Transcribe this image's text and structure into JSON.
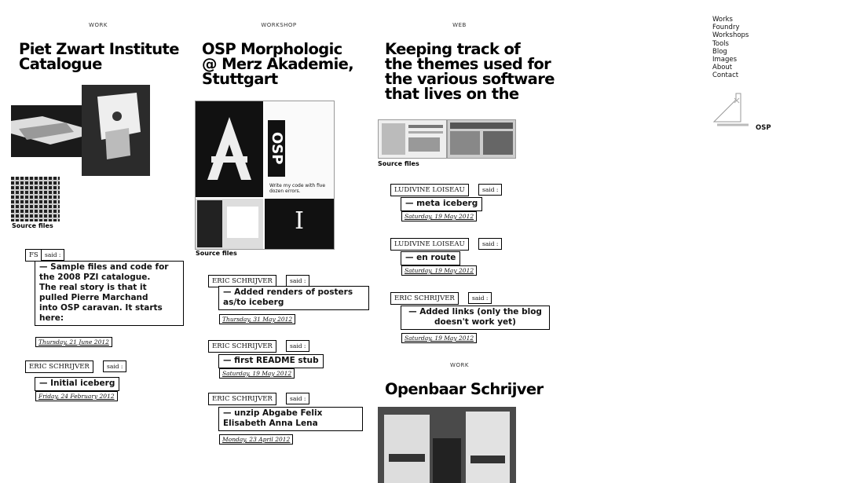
{
  "nav": {
    "items": [
      "Works",
      "Foundry",
      "Workshops",
      "Tools",
      "Blog",
      "Images",
      "About",
      "Contact"
    ],
    "logo_label": "OSP"
  },
  "col1": {
    "category": "WORK",
    "title_lines": [
      "Piet Zwart Institute",
      "Catalogue"
    ],
    "source_label": "Source files",
    "comments": [
      {
        "author": "FS",
        "said": "said :",
        "message": [
          "— Sample files and code for",
          "the 2008 PZI catalogue.",
          "The real story is that it",
          "pulled Pierre Marchand",
          "into OSP caravan. It starts",
          "here:"
        ],
        "date": "Thursday, 21 June 2012"
      },
      {
        "author": "ERIC SCHRIJVER",
        "said": "said :",
        "message": [
          "— Initial iceberg"
        ],
        "date": "Friday, 24 February 2012"
      }
    ]
  },
  "col2": {
    "category": "WORKSHOP",
    "title_lines": [
      "OSP Morphologic",
      "@ Merz Akademie,",
      "Stuttgart"
    ],
    "thumb_text": {
      "osp": "OSP",
      "write": "Write my code with five dozen errors.",
      "i": "I"
    },
    "source_label": "Source files",
    "comments": [
      {
        "author": "ERIC SCHRIJVER",
        "said": "said :",
        "message": [
          "— Added renders of posters",
          "as/to iceberg"
        ],
        "date": "Thursday, 31 May 2012"
      },
      {
        "author": "ERIC SCHRIJVER",
        "said": "said :",
        "message": [
          "— first README stub"
        ],
        "date": "Saturday, 19 May 2012"
      },
      {
        "author": "ERIC SCHRIJVER",
        "said": "said :",
        "message": [
          "— unzip Abgabe Felix",
          "Elisabeth Anna Lena"
        ],
        "date": "Monday, 23 April 2012"
      }
    ]
  },
  "col3": {
    "category": "WEB",
    "title_lines": [
      "Keeping track of",
      "the themes used for",
      "the various software",
      "that lives on the"
    ],
    "source_label": "Source files",
    "comments": [
      {
        "author": "LUDIVINE LOISEAU",
        "said": "said :",
        "message": [
          "— meta iceberg"
        ],
        "date": "Saturday, 19 May 2012"
      },
      {
        "author": "LUDIVINE LOISEAU",
        "said": "said :",
        "message": [
          "— en route"
        ],
        "date": "Saturday, 19 May 2012"
      },
      {
        "author": "ERIC SCHRIJVER",
        "said": "said :",
        "message": [
          "— Added links (only the blog",
          "doesn't work yet)"
        ],
        "date": "Saturday, 19 May 2012"
      }
    ],
    "next_category": "WORK",
    "next_title": "Openbaar Schrijver"
  }
}
